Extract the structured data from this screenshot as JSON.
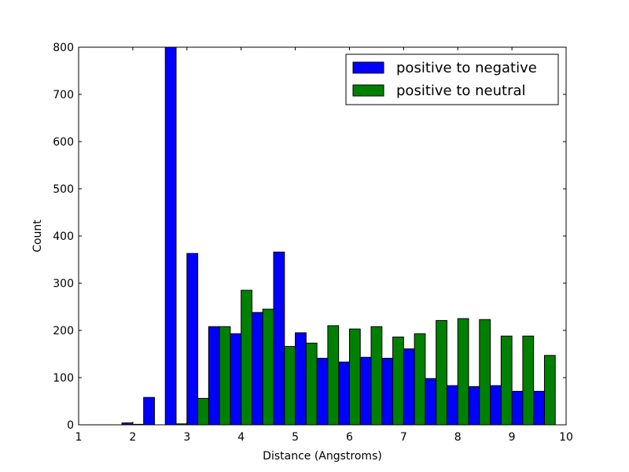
{
  "chart_data": {
    "type": "bar",
    "title": "",
    "xlabel": "Distance (Angstroms)",
    "ylabel": "Count",
    "xlim": [
      1,
      10
    ],
    "ylim": [
      0,
      800
    ],
    "xticks": [
      1,
      2,
      3,
      4,
      5,
      6,
      7,
      8,
      9,
      10
    ],
    "yticks": [
      0,
      100,
      200,
      300,
      400,
      500,
      600,
      700,
      800
    ],
    "grid": false,
    "legend_position": "top-right",
    "bin_edges": [
      1.0,
      1.4,
      1.8,
      2.2,
      2.6,
      3.0,
      3.4,
      3.8,
      4.2,
      4.6,
      5.0,
      5.4,
      5.8,
      6.2,
      6.6,
      7.0,
      7.4,
      7.8,
      8.2,
      8.6,
      9.0,
      9.4,
      9.8
    ],
    "series": [
      {
        "name": "positive to negative",
        "color": "#0000ff",
        "values": [
          0,
          0,
          4,
          58,
          800,
          363,
          208,
          193,
          238,
          366,
          195,
          141,
          133,
          143,
          141,
          161,
          98,
          83,
          81,
          83,
          71,
          71
        ]
      },
      {
        "name": "positive to neutral",
        "color": "#008000",
        "values": [
          0,
          0,
          1,
          0,
          2,
          56,
          208,
          285,
          245,
          166,
          173,
          210,
          203,
          208,
          186,
          193,
          221,
          225,
          223,
          188,
          188,
          147
        ]
      }
    ]
  }
}
